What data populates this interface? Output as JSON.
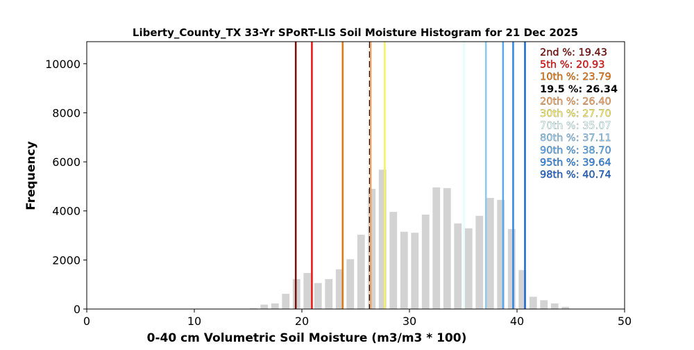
{
  "chart_data": {
    "type": "bar",
    "title": "Liberty_County_TX 33-Yr SPoRT-LIS Soil Moisture Histogram for 21 Dec 2025",
    "xlabel": "0-40 cm Volumetric Soil Moisture (m3/m3 * 100)",
    "ylabel": "Frequency",
    "xlim": [
      0,
      50
    ],
    "ylim": [
      0,
      10900
    ],
    "xticks": [
      0,
      10,
      20,
      30,
      40,
      50
    ],
    "yticks": [
      0,
      2000,
      4000,
      6000,
      8000,
      10000
    ],
    "bar_color": "#d3d3d3",
    "bins": [
      15.5,
      16.5,
      17.5,
      18.5,
      19.5,
      20.5,
      21.5,
      22.5,
      23.5,
      24.5,
      25.5,
      26.5,
      27.5,
      28.5,
      29.5,
      30.5,
      31.5,
      32.5,
      33.5,
      34.5,
      35.5,
      36.5,
      37.5,
      38.5,
      39.5,
      40.5,
      41.5,
      42.5,
      43.5,
      44.5
    ],
    "values": [
      30,
      180,
      230,
      620,
      1220,
      1470,
      1060,
      1220,
      1620,
      2030,
      3030,
      4900,
      5680,
      3960,
      3150,
      3110,
      3850,
      4960,
      4930,
      3490,
      3290,
      3800,
      4530,
      4450,
      3260,
      1590,
      500,
      360,
      230,
      90
    ],
    "percentiles": [
      {
        "label": "2nd %: 19.43",
        "value": 19.43,
        "color": "#7b0c0c"
      },
      {
        "label": "5th %: 20.93",
        "value": 20.93,
        "color": "#ee1010"
      },
      {
        "label": "10th %: 23.79",
        "value": 23.79,
        "color": "#e8760f"
      },
      {
        "label": "19.5 %: 26.34",
        "value": 26.34,
        "color": "#000000",
        "dashed": true
      },
      {
        "label": "20th %: 26.40",
        "value": 26.4,
        "color": "#f4a460"
      },
      {
        "label": "30th %: 27.70",
        "value": 27.7,
        "color": "#f8f060"
      },
      {
        "label": "70th %: 35.07",
        "value": 35.07,
        "color": "#e0ffff"
      },
      {
        "label": "80th %: 37.11",
        "value": 37.11,
        "color": "#90c8f0"
      },
      {
        "label": "90th %: 38.70",
        "value": 38.7,
        "color": "#58a8f0"
      },
      {
        "label": "95th %: 39.64",
        "value": 39.64,
        "color": "#2e86e8"
      },
      {
        "label": "98th %: 40.74",
        "value": 40.74,
        "color": "#1e64d0"
      }
    ],
    "legend_position": "top-right",
    "grid": false
  }
}
